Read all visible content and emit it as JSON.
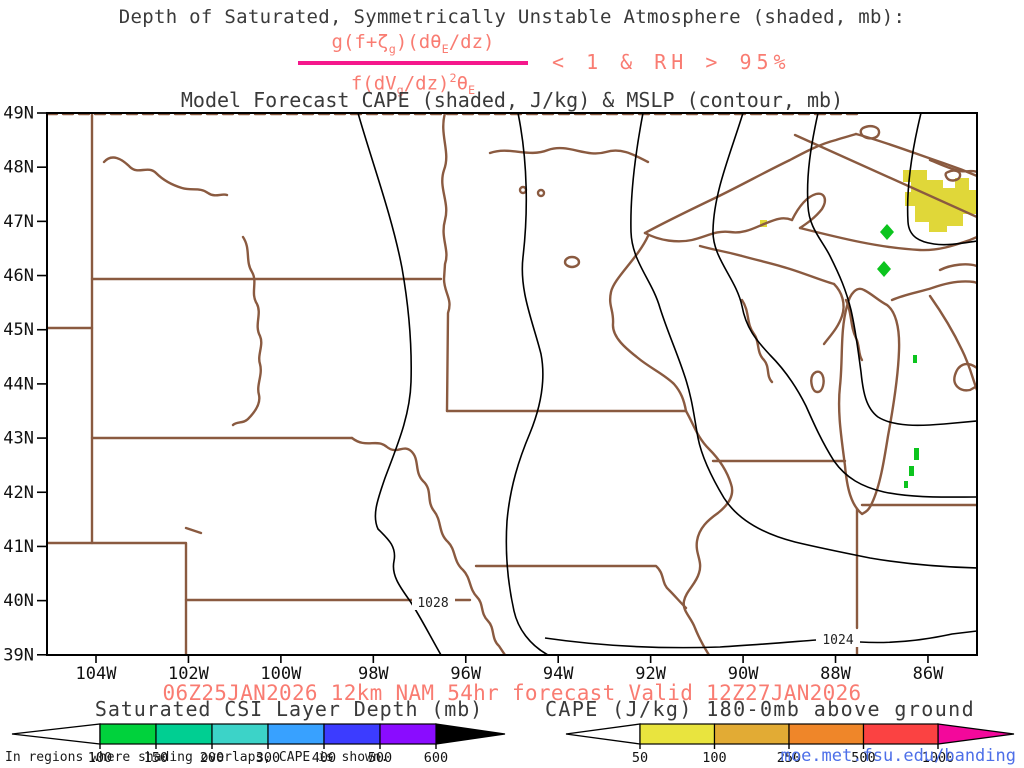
{
  "header": {
    "title": "Depth of Saturated, Symmetrically Unstable Atmosphere (shaded, mb):",
    "subtitle": "Model Forecast CAPE (shaded, J/kg) & MSLP (contour, mb)",
    "formula": {
      "numerator_parts": [
        "g(f+ζ",
        "g",
        ")(dθ",
        "E",
        "/dz)"
      ],
      "denominator_parts": [
        "f(dV",
        "g",
        "/dz)",
        "2",
        "θ",
        "E"
      ],
      "condition": "< 1 & RH > 95%"
    }
  },
  "map": {
    "lat_labels": [
      "49N",
      "48N",
      "47N",
      "46N",
      "45N",
      "44N",
      "43N",
      "42N",
      "41N",
      "40N",
      "39N"
    ],
    "lon_labels": [
      "104W",
      "102W",
      "100W",
      "98W",
      "96W",
      "94W",
      "92W",
      "90W",
      "88W",
      "86W"
    ],
    "contour_labels": {
      "west": "1028",
      "east": "1024"
    }
  },
  "footer": {
    "forecast_line": "06Z25JAN2026 12km NAM 54hr forecast Valid 12Z27JAN2026",
    "note": "In regions where shading overlaps, CAPE is shown.",
    "url": "moe.met.fsu.edu/banding"
  },
  "colorbars": {
    "csi": {
      "title": "Saturated CSI Layer Depth (mb)",
      "tick_labels": [
        "100",
        "150",
        "200",
        "300",
        "400",
        "500",
        "600"
      ],
      "segment_colors": [
        "#00d23c",
        "#00cf92",
        "#3cd3c8",
        "#38a1ff",
        "#3c3cff",
        "#8a0cff"
      ],
      "start_arrow_color": "#ffffff",
      "end_arrow_color": "#000000"
    },
    "cape": {
      "title": "CAPE (J/kg) 180-0mb above ground",
      "tick_labels": [
        "50",
        "100",
        "250",
        "500",
        "1000"
      ],
      "segment_colors": [
        "#e9e43e",
        "#e2ab34",
        "#ef8629",
        "#fb4242"
      ],
      "start_arrow_color": "#ffffff",
      "end_arrow_color": "#f3089b"
    }
  },
  "colors": {
    "state_border": "#8a5a40",
    "contour_line": "#000000",
    "cape_shade_yellow": "#e0d739",
    "csi_shade_green": "#0cc41e",
    "formula_bar_pink": "#f5188c",
    "highlight_red": "#f97c72",
    "link_blue": "#4d6fe8",
    "title_text": "#3a3a3a",
    "axis_text": "#111111"
  }
}
